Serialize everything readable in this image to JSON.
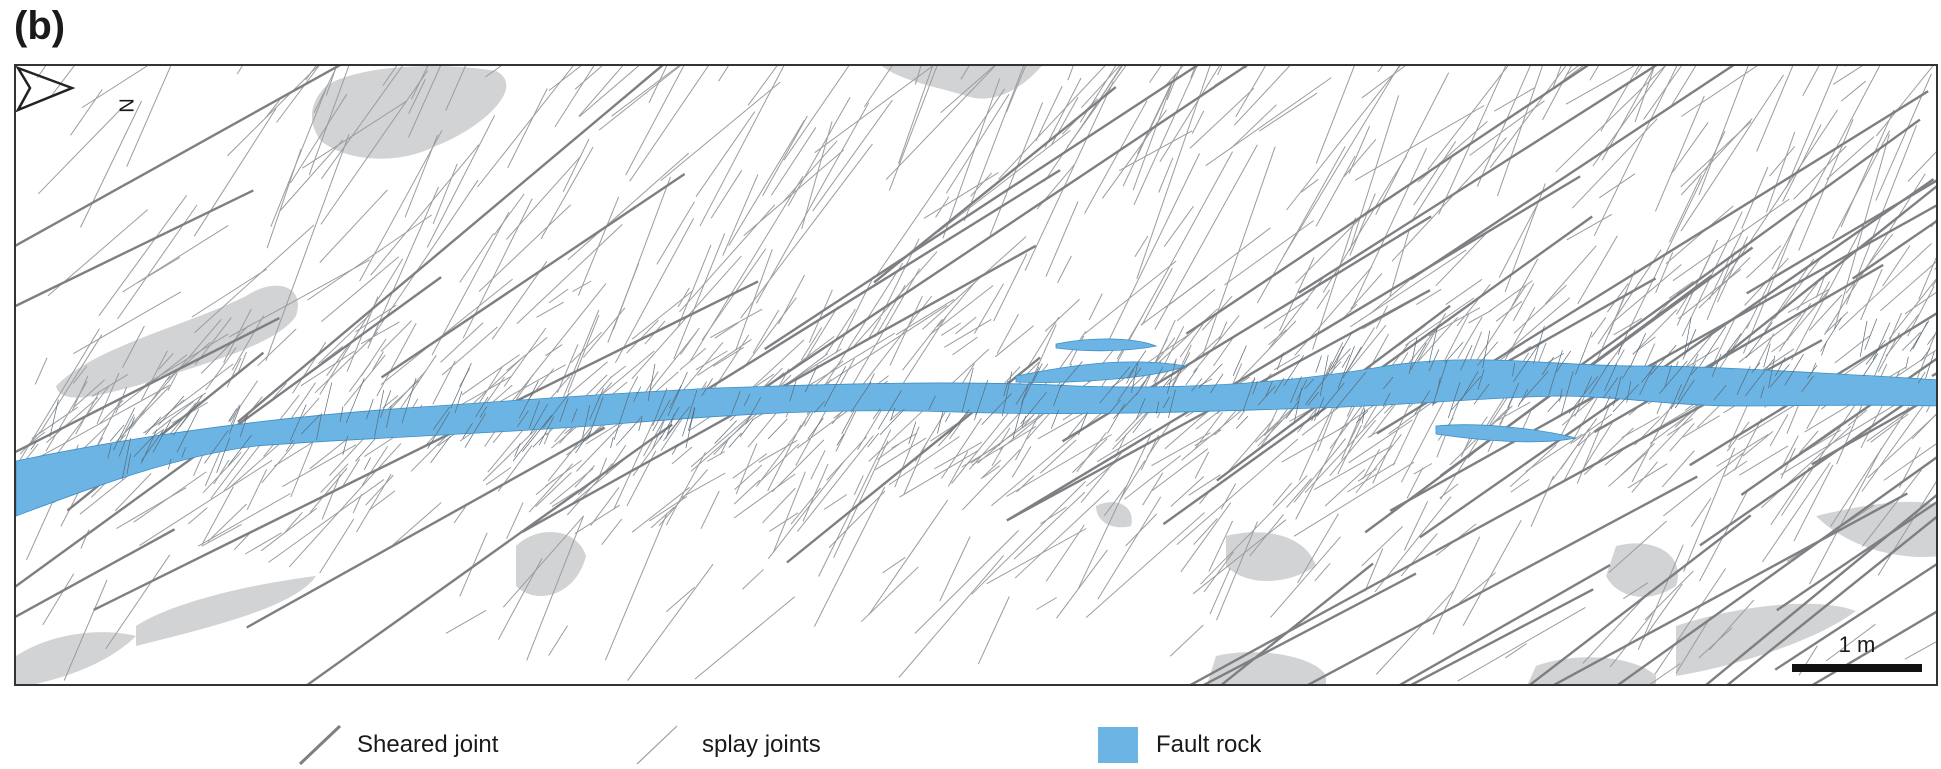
{
  "figure": {
    "panel_label": "(b)",
    "north_label": "N",
    "scale_label": "1 m"
  },
  "legend": {
    "sheared_joint": "Sheared joint",
    "splay_joints": "splay joints",
    "fault_rock": "Fault rock"
  },
  "colors": {
    "sheared_joint": "#7d7f82",
    "splay_joint": "#9a9c9f",
    "fault_rock": "#6cb4e4",
    "outcrop_shade": "#d2d3d4"
  }
}
